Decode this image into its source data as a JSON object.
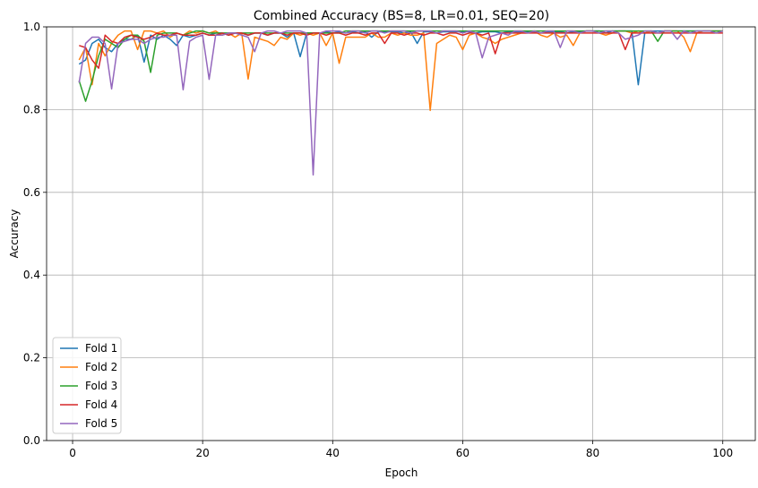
{
  "chart_data": {
    "type": "line",
    "title": "Combined Accuracy (BS=8, LR=0.01, SEQ=20)",
    "xlabel": "Epoch",
    "ylabel": "Accuracy",
    "xlim": [
      -4,
      105
    ],
    "ylim": [
      0.0,
      1.0
    ],
    "xticks": [
      0,
      20,
      40,
      60,
      80,
      100
    ],
    "yticks": [
      0.0,
      0.2,
      0.4,
      0.6,
      0.8,
      1.0
    ],
    "xtick_labels": [
      "0",
      "20",
      "40",
      "60",
      "80",
      "100"
    ],
    "ytick_labels": [
      "0.0",
      "0.2",
      "0.4",
      "0.6",
      "0.8",
      "1.0"
    ],
    "grid": true,
    "legend_position": "lower-left",
    "series": [
      {
        "name": "Fold 1",
        "color": "#1f77b4",
        "values": [
          0.91,
          0.92,
          0.96,
          0.97,
          0.95,
          0.94,
          0.96,
          0.97,
          0.97,
          0.98,
          0.915,
          0.98,
          0.97,
          0.98,
          0.97,
          0.955,
          0.98,
          0.975,
          0.98,
          0.985,
          0.98,
          0.985,
          0.985,
          0.98,
          0.985,
          0.985,
          0.98,
          0.985,
          0.985,
          0.98,
          0.985,
          0.985,
          0.975,
          0.985,
          0.928,
          0.985,
          0.985,
          0.985,
          0.988,
          0.985,
          0.988,
          0.985,
          0.988,
          0.985,
          0.988,
          0.975,
          0.988,
          0.988,
          0.988,
          0.988,
          0.985,
          0.988,
          0.96,
          0.988,
          0.988,
          0.985,
          0.988,
          0.988,
          0.988,
          0.988,
          0.988,
          0.985,
          0.988,
          0.988,
          0.988,
          0.985,
          0.988,
          0.988,
          0.988,
          0.988,
          0.988,
          0.985,
          0.988,
          0.988,
          0.988,
          0.985,
          0.988,
          0.988,
          0.99,
          0.99,
          0.99,
          0.985,
          0.99,
          0.99,
          0.99,
          0.99,
          0.86,
          0.985,
          0.99,
          0.99,
          0.99,
          0.99,
          0.99,
          0.99,
          0.99,
          0.99,
          0.99,
          0.99,
          0.99,
          0.99
        ]
      },
      {
        "name": "Fold 2",
        "color": "#ff7f0e",
        "values": [
          0.92,
          0.95,
          0.86,
          0.96,
          0.93,
          0.96,
          0.98,
          0.99,
          0.99,
          0.945,
          0.99,
          0.99,
          0.985,
          0.99,
          0.975,
          0.985,
          0.98,
          0.99,
          0.985,
          0.99,
          0.985,
          0.99,
          0.98,
          0.985,
          0.975,
          0.985,
          0.874,
          0.975,
          0.97,
          0.965,
          0.955,
          0.975,
          0.97,
          0.985,
          0.98,
          0.985,
          0.98,
          0.985,
          0.955,
          0.985,
          0.912,
          0.975,
          0.975,
          0.975,
          0.975,
          0.985,
          0.975,
          0.975,
          0.985,
          0.98,
          0.985,
          0.98,
          0.98,
          0.985,
          0.798,
          0.96,
          0.97,
          0.98,
          0.975,
          0.945,
          0.98,
          0.985,
          0.975,
          0.97,
          0.96,
          0.97,
          0.975,
          0.98,
          0.985,
          0.985,
          0.99,
          0.98,
          0.975,
          0.985,
          0.975,
          0.98,
          0.955,
          0.985,
          0.99,
          0.99,
          0.985,
          0.98,
          0.985,
          0.99,
          0.99,
          0.985,
          0.99,
          0.985,
          0.99,
          0.985,
          0.99,
          0.99,
          0.99,
          0.975,
          0.94,
          0.985,
          0.99,
          0.99,
          0.99,
          0.99
        ]
      },
      {
        "name": "Fold 3",
        "color": "#2ca02c",
        "values": [
          0.87,
          0.82,
          0.87,
          0.93,
          0.97,
          0.96,
          0.95,
          0.97,
          0.98,
          0.98,
          0.965,
          0.89,
          0.98,
          0.985,
          0.985,
          0.985,
          0.98,
          0.985,
          0.99,
          0.99,
          0.985,
          0.985,
          0.985,
          0.985,
          0.985,
          0.985,
          0.985,
          0.985,
          0.985,
          0.985,
          0.985,
          0.985,
          0.985,
          0.985,
          0.985,
          0.985,
          0.985,
          0.985,
          0.985,
          0.985,
          0.985,
          0.99,
          0.99,
          0.99,
          0.99,
          0.99,
          0.99,
          0.99,
          0.99,
          0.99,
          0.99,
          0.99,
          0.99,
          0.99,
          0.99,
          0.99,
          0.99,
          0.99,
          0.99,
          0.99,
          0.99,
          0.99,
          0.99,
          0.99,
          0.99,
          0.99,
          0.99,
          0.99,
          0.99,
          0.99,
          0.99,
          0.99,
          0.99,
          0.99,
          0.99,
          0.99,
          0.99,
          0.99,
          0.99,
          0.99,
          0.99,
          0.99,
          0.99,
          0.99,
          0.99,
          0.99,
          0.99,
          0.99,
          0.99,
          0.965,
          0.99,
          0.99,
          0.99,
          0.99,
          0.99,
          0.99,
          0.99,
          0.99,
          0.99,
          0.99
        ]
      },
      {
        "name": "Fold 4",
        "color": "#d62728",
        "values": [
          0.955,
          0.95,
          0.92,
          0.9,
          0.98,
          0.965,
          0.96,
          0.975,
          0.98,
          0.975,
          0.97,
          0.975,
          0.985,
          0.98,
          0.98,
          0.985,
          0.98,
          0.98,
          0.98,
          0.985,
          0.98,
          0.98,
          0.985,
          0.98,
          0.985,
          0.985,
          0.98,
          0.985,
          0.985,
          0.98,
          0.985,
          0.985,
          0.98,
          0.985,
          0.985,
          0.98,
          0.985,
          0.985,
          0.98,
          0.985,
          0.985,
          0.98,
          0.985,
          0.985,
          0.98,
          0.985,
          0.985,
          0.96,
          0.985,
          0.985,
          0.98,
          0.985,
          0.985,
          0.98,
          0.985,
          0.985,
          0.98,
          0.985,
          0.985,
          0.98,
          0.985,
          0.985,
          0.98,
          0.985,
          0.935,
          0.985,
          0.985,
          0.985,
          0.985,
          0.985,
          0.985,
          0.985,
          0.985,
          0.985,
          0.985,
          0.985,
          0.985,
          0.985,
          0.985,
          0.985,
          0.985,
          0.985,
          0.985,
          0.985,
          0.945,
          0.985,
          0.985,
          0.985,
          0.985,
          0.985,
          0.985,
          0.985,
          0.985,
          0.985,
          0.985,
          0.985,
          0.985,
          0.985,
          0.985,
          0.985
        ]
      },
      {
        "name": "Fold 5",
        "color": "#9467bd",
        "values": [
          0.865,
          0.96,
          0.975,
          0.975,
          0.96,
          0.85,
          0.96,
          0.965,
          0.97,
          0.97,
          0.96,
          0.97,
          0.975,
          0.975,
          0.98,
          0.98,
          0.848,
          0.965,
          0.975,
          0.98,
          0.873,
          0.98,
          0.98,
          0.985,
          0.985,
          0.98,
          0.975,
          0.94,
          0.985,
          0.99,
          0.99,
          0.985,
          0.99,
          0.99,
          0.99,
          0.985,
          0.642,
          0.985,
          0.99,
          0.99,
          0.99,
          0.985,
          0.99,
          0.99,
          0.985,
          0.99,
          0.99,
          0.985,
          0.99,
          0.99,
          0.99,
          0.985,
          0.99,
          0.99,
          0.99,
          0.985,
          0.99,
          0.99,
          0.99,
          0.985,
          0.99,
          0.985,
          0.925,
          0.975,
          0.98,
          0.985,
          0.98,
          0.99,
          0.99,
          0.985,
          0.99,
          0.985,
          0.99,
          0.99,
          0.95,
          0.99,
          0.99,
          0.985,
          0.99,
          0.99,
          0.985,
          0.99,
          0.99,
          0.985,
          0.97,
          0.975,
          0.98,
          0.99,
          0.99,
          0.985,
          0.99,
          0.99,
          0.97,
          0.99,
          0.985,
          0.99,
          0.99,
          0.99,
          0.985,
          0.99
        ]
      }
    ]
  }
}
